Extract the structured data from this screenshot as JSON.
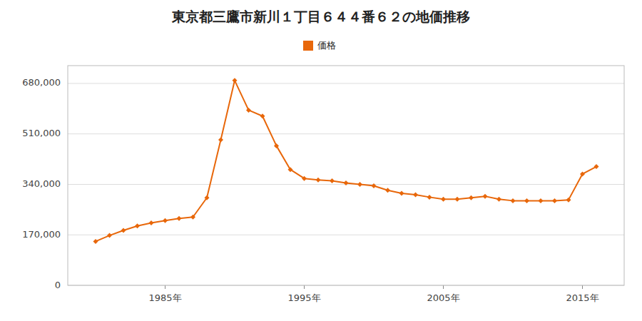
{
  "chart_data": {
    "type": "line",
    "title": "東京都三鷹市新川１丁目６４４番６２の地価推移",
    "x": [
      1980,
      1981,
      1982,
      1983,
      1984,
      1985,
      1986,
      1987,
      1988,
      1989,
      1990,
      1991,
      1992,
      1993,
      1994,
      1995,
      1996,
      1997,
      1998,
      1999,
      2000,
      2001,
      2002,
      2003,
      2004,
      2005,
      2006,
      2007,
      2008,
      2009,
      2010,
      2011,
      2012,
      2013,
      2014,
      2015,
      2016
    ],
    "series": [
      {
        "name": "価格",
        "color": "#e8670a",
        "marker": "diamond",
        "values": [
          148000,
          168000,
          185000,
          200000,
          210000,
          218000,
          225000,
          230000,
          295000,
          490000,
          690000,
          590000,
          570000,
          470000,
          390000,
          360000,
          355000,
          352000,
          345000,
          340000,
          335000,
          320000,
          310000,
          305000,
          297000,
          290000,
          290000,
          295000,
          300000,
          290000,
          285000,
          285000,
          285000,
          285000,
          288000,
          375000,
          400000
        ]
      }
    ],
    "xlim": [
      1978,
      2018
    ],
    "xticks": [
      {
        "value": 1985,
        "label": "1985年"
      },
      {
        "value": 1995,
        "label": "1995年"
      },
      {
        "value": 2005,
        "label": "2005年"
      },
      {
        "value": 2015,
        "label": "2015年"
      }
    ],
    "ylim": [
      0,
      740000
    ],
    "yticks": [
      0,
      {
        "value": 170000,
        "label": "170,000"
      },
      {
        "value": 340000,
        "label": "340,000"
      },
      {
        "value": 510000,
        "label": "510,000"
      },
      {
        "value": 680000,
        "label": "680,000"
      }
    ],
    "grid": true,
    "legend": "top"
  }
}
